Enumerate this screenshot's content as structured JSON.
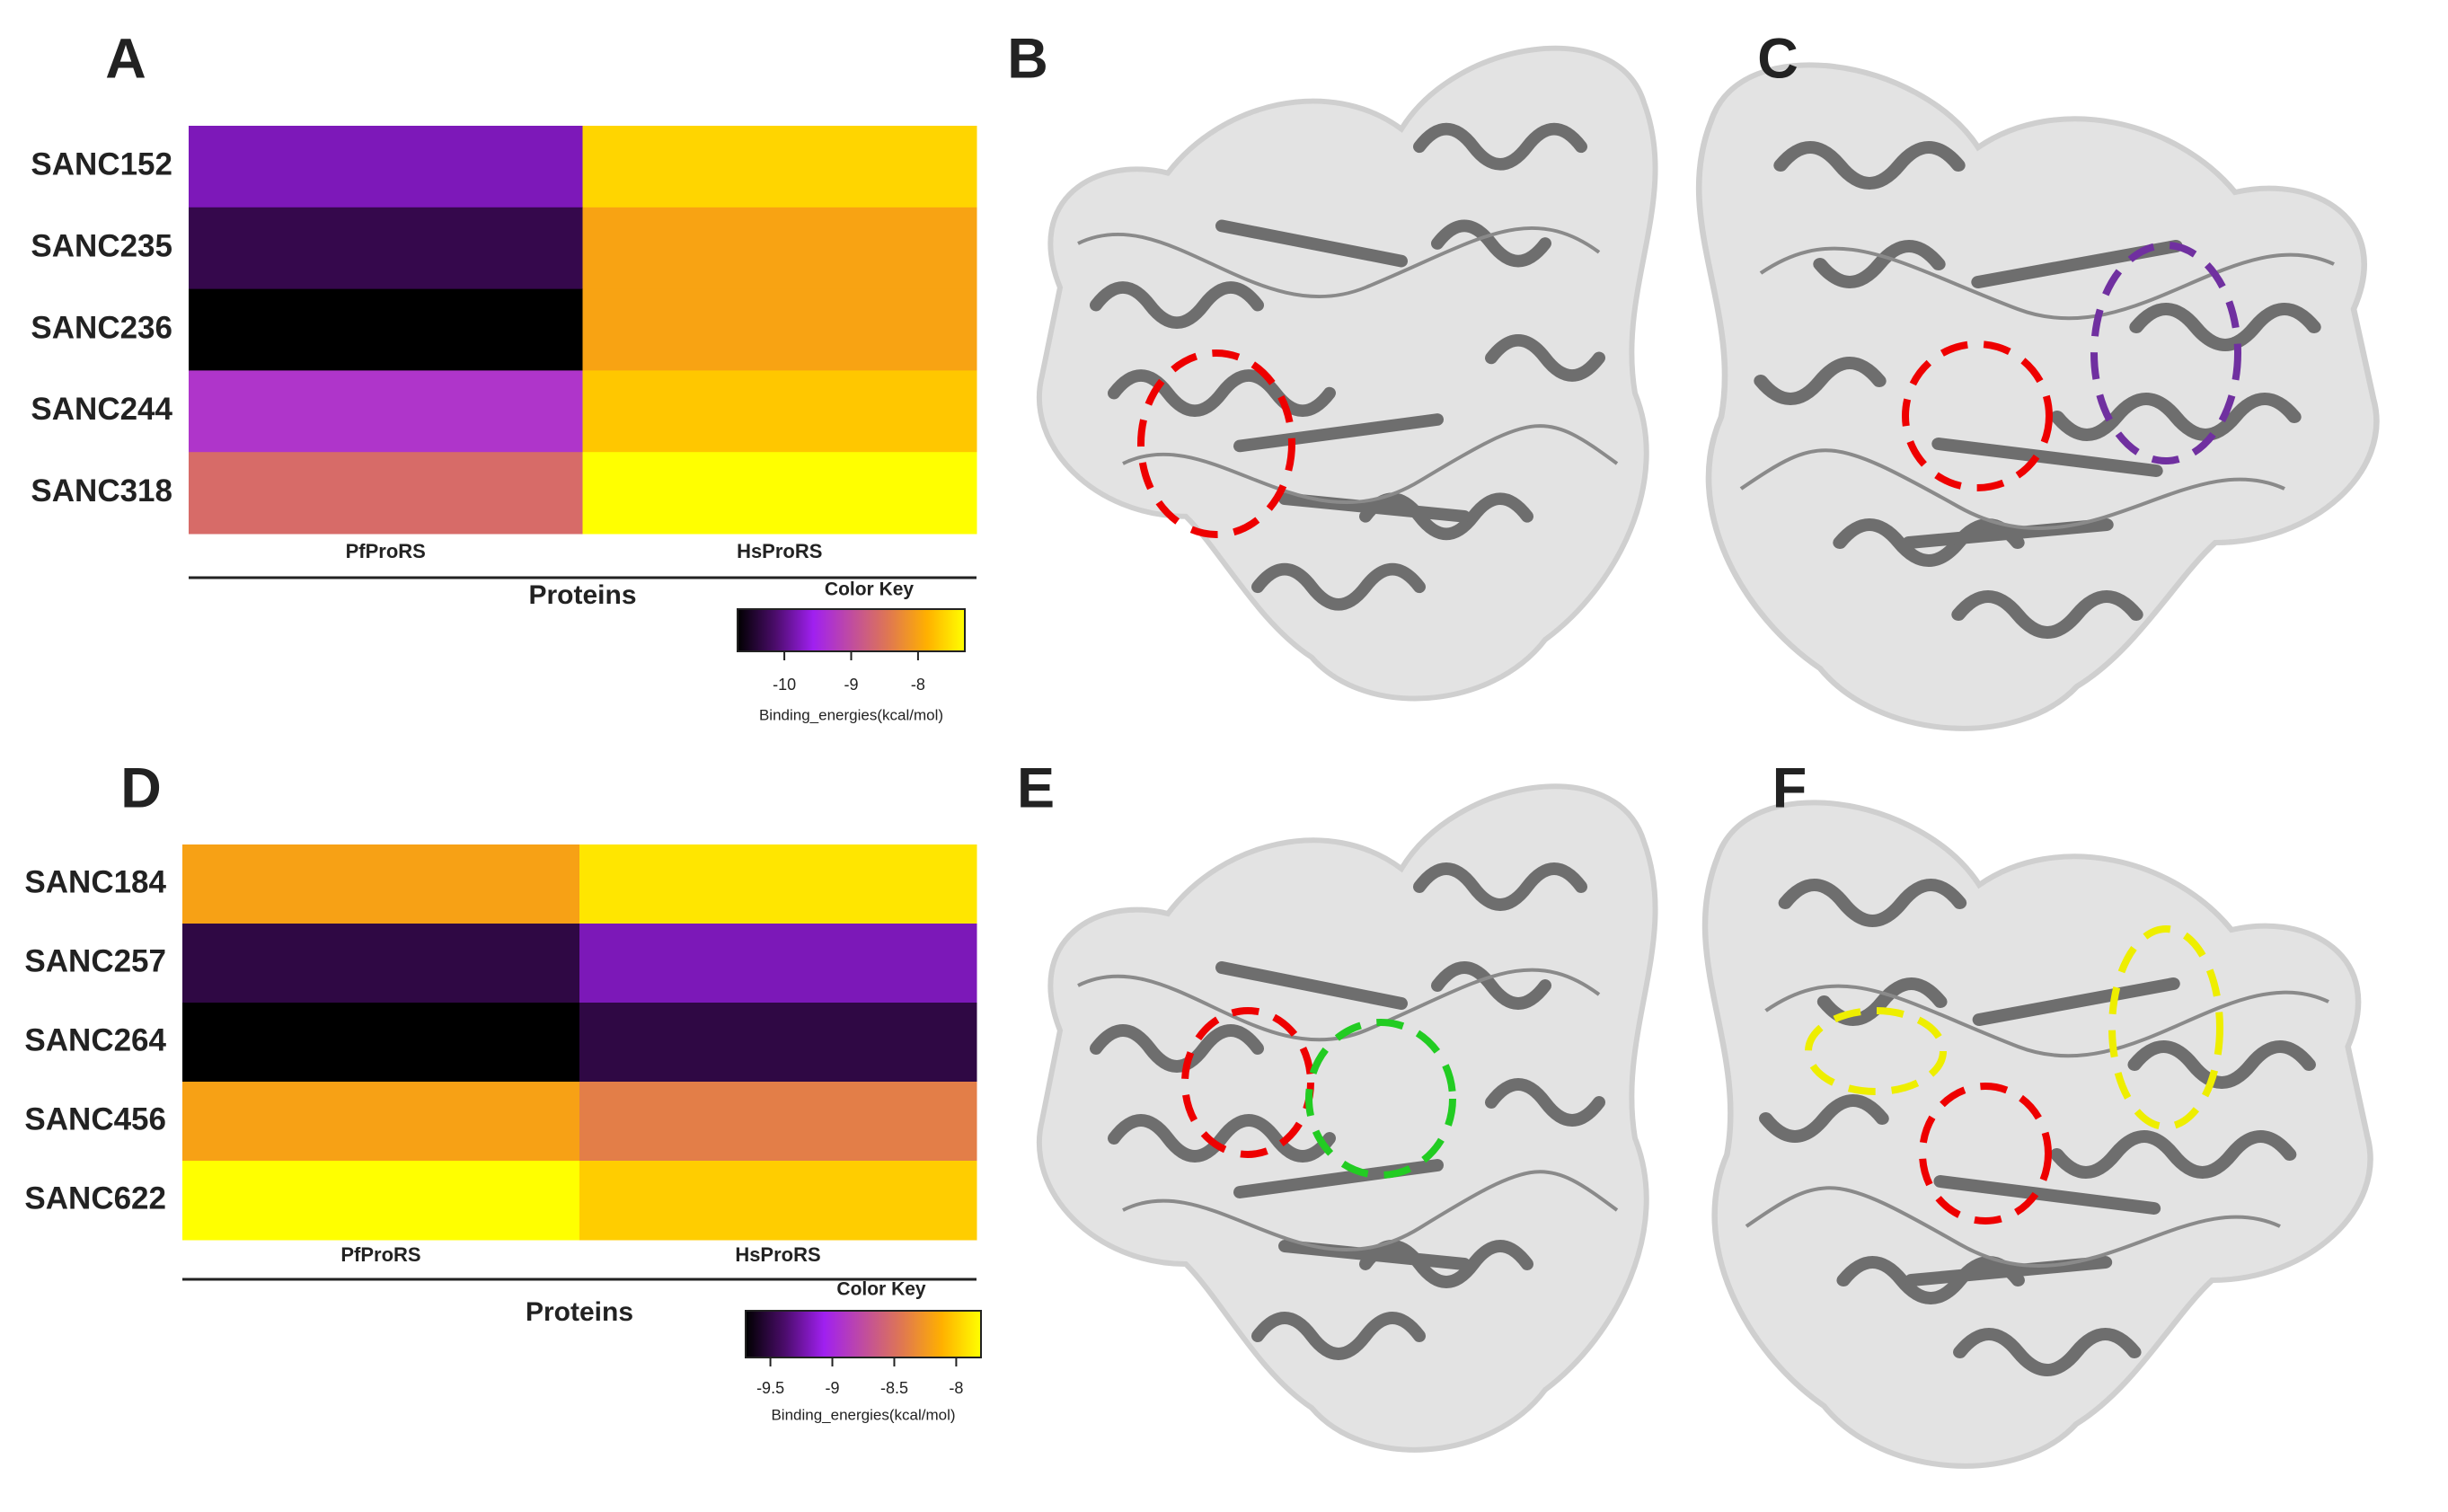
{
  "panel_labels": [
    "A",
    "B",
    "C",
    "D",
    "E",
    "F"
  ],
  "chart_data": [
    {
      "type": "heatmap",
      "x_categories": [
        "PfProRS",
        "HsProRS"
      ],
      "y_categories": [
        "SANC152",
        "SANC235",
        "SANC236",
        "SANC244",
        "SANC318"
      ],
      "values": [
        [
          -9.8,
          -7.6
        ],
        [
          -10.3,
          -8.0
        ],
        [
          -10.7,
          -8.0
        ],
        [
          -9.3,
          -7.7
        ],
        [
          -8.6,
          -7.3
        ]
      ],
      "xlabel": "Proteins",
      "colorbar_title": "Color Key",
      "colorbar_label": "Binding_energies(kcal/mol)",
      "zlim": [
        -10.7,
        -7.3
      ],
      "zticks": [
        -10,
        -9,
        -8
      ],
      "colormap": [
        "#000000",
        "#4b0c6b",
        "#a020f0",
        "#c04ca0",
        "#e07850",
        "#ffb000",
        "#ffff00"
      ]
    },
    {
      "type": "heatmap",
      "x_categories": [
        "PfProRS",
        "HsProRS"
      ],
      "y_categories": [
        "SANC184",
        "SANC257",
        "SANC264",
        "SANC456",
        "SANC622"
      ],
      "values": [
        [
          -8.2,
          -7.9
        ],
        [
          -9.5,
          -9.2
        ],
        [
          -9.7,
          -9.5
        ],
        [
          -8.2,
          -8.4
        ],
        [
          -7.8,
          -8.0
        ]
      ],
      "xlabel": "Proteins",
      "colorbar_title": "Color Key",
      "colorbar_label": "Binding_energies(kcal/mol)",
      "zlim": [
        -9.7,
        -7.8
      ],
      "zticks": [
        -9.5,
        -9,
        -8.5,
        -8
      ],
      "colormap": [
        "#000000",
        "#4b0c6b",
        "#a020f0",
        "#c04ca0",
        "#e07850",
        "#ffb000",
        "#ffff00"
      ]
    }
  ]
}
